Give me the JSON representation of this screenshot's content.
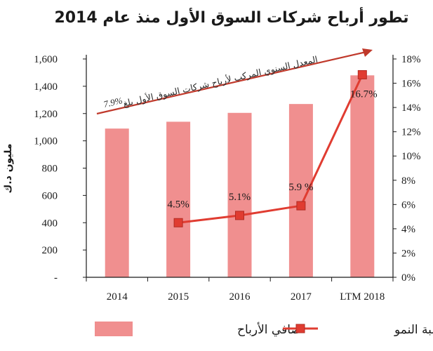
{
  "chart_data": {
    "type": "bar+line",
    "title": "تطور أرباح شركات السوق الأول منذ عام 2014",
    "ylabel_left": "مليون د.ك",
    "ylabel_right": "",
    "categories": [
      "2014",
      "2015",
      "2016",
      "2017",
      "LTM 2018"
    ],
    "y_left_ticks": [
      "-",
      "200",
      "400",
      "600",
      "800",
      "1,000",
      "1,200",
      "1,400",
      "1,600"
    ],
    "y_left_range": [
      0,
      1600
    ],
    "y_right_ticks": [
      "0%",
      "2%",
      "4%",
      "6%",
      "8%",
      "10%",
      "12%",
      "14%",
      "16%",
      "18%"
    ],
    "y_right_range": [
      0,
      18
    ],
    "series": [
      {
        "name": "صافي الأرباح",
        "type": "bar",
        "axis": "left",
        "color": "#f08f8f",
        "values": [
          1090,
          1140,
          1205,
          1270,
          1480
        ]
      },
      {
        "name": "نسبة النمو",
        "type": "line",
        "axis": "right",
        "color": "#e03c31",
        "values": [
          null,
          4.5,
          5.1,
          5.9,
          16.7
        ],
        "labels": [
          "",
          "4.5%",
          "5.1%",
          "5.9 %",
          "16.7%"
        ]
      }
    ],
    "annotation": {
      "text": "المعدل السنوي المركب لأرباح شركات السوق الأول بلغ",
      "value": "7.9%",
      "arrow_color": "#c0392b"
    },
    "legend_position": "bottom",
    "grid": false
  }
}
